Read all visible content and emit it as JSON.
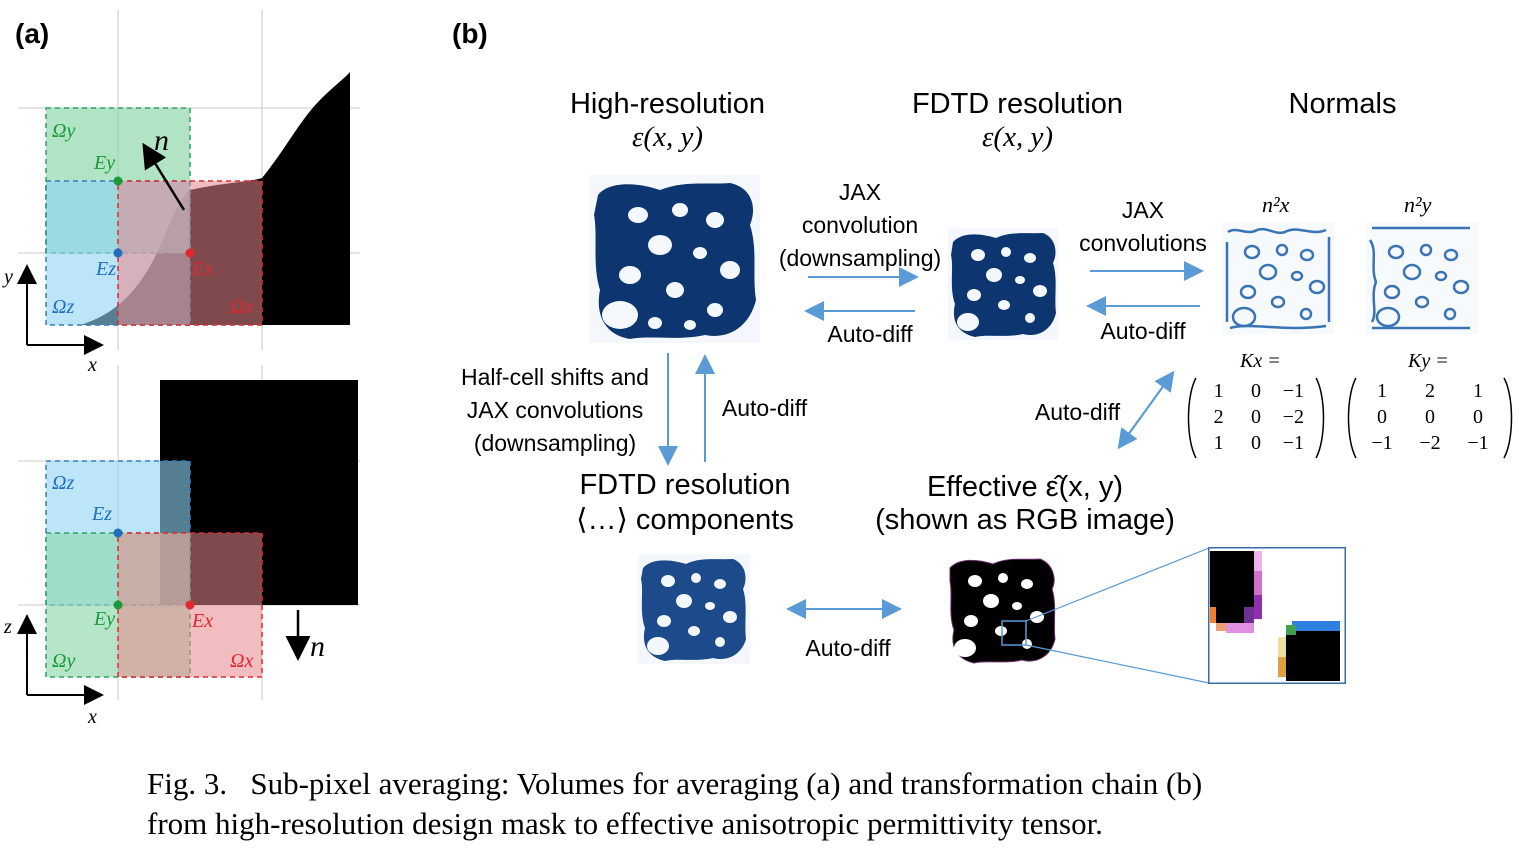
{
  "panels": {
    "a": "(a)",
    "b": "(b)"
  },
  "panel_a": {
    "top": {
      "omega_y": "Ωy",
      "omega_z": "Ωz",
      "omega_x": "Ωx",
      "e_y": "Ey",
      "e_z": "Ez",
      "e_x": "Ex",
      "normal": "n",
      "axis_vertical": "y",
      "axis_horizontal": "x"
    },
    "bottom": {
      "omega_z": "Ωz",
      "omega_y": "Ωy",
      "omega_x": "Ωx",
      "e_z": "Ez",
      "e_y": "Ey",
      "e_x": "Ex",
      "normal": "n",
      "axis_vertical": "z",
      "axis_horizontal": "x"
    }
  },
  "panel_b": {
    "high_res_title": [
      "High-resolution",
      "ε(x, y)"
    ],
    "fdtd_title": [
      "FDTD resolution",
      "ε(x, y)"
    ],
    "normals_title": "Normals",
    "nx2": "n²x",
    "ny2": "n²y",
    "jax_conv_down": [
      "JAX",
      "convolution",
      "(downsampling)"
    ],
    "autodiff_1": "Auto-diff",
    "jax_convs": [
      "JAX",
      "convolutions"
    ],
    "autodiff_2": "Auto-diff",
    "half_cell": [
      "Half-cell shifts and",
      "JAX convolutions",
      "(downsampling)"
    ],
    "autodiff_3": "Auto-diff",
    "fdtd_components": [
      "FDTD resolution",
      "⟨…⟩ components"
    ],
    "effective": [
      "Effective ε̂(x, y)",
      "(shown as RGB image)"
    ],
    "autodiff_4": "Auto-diff",
    "autodiff_5": "Auto-diff",
    "kx_label": "Kx =",
    "ky_label": "Ky =",
    "kx_matrix": [
      [
        "1",
        "0",
        "−1"
      ],
      [
        "2",
        "0",
        "−2"
      ],
      [
        "1",
        "0",
        "−1"
      ]
    ],
    "ky_matrix": [
      [
        "1",
        "2",
        "1"
      ],
      [
        "0",
        "0",
        "0"
      ],
      [
        "−1",
        "−2",
        "−1"
      ]
    ]
  },
  "caption": {
    "line1": "Fig. 3.   Sub-pixel averaging: Volumes for averaging (a) and transformation chain (b)",
    "line2": "from high-resolution design mask to effective anisotropic permittivity tensor."
  },
  "colors": {
    "navy": "#0d3570",
    "green_fill": "#a8e2c0",
    "blue_fill": "#a9dcf5",
    "red_fill": "#f5a3a8",
    "arrow_blue": "#5b9bd5",
    "grid": "#c8c8c8"
  }
}
